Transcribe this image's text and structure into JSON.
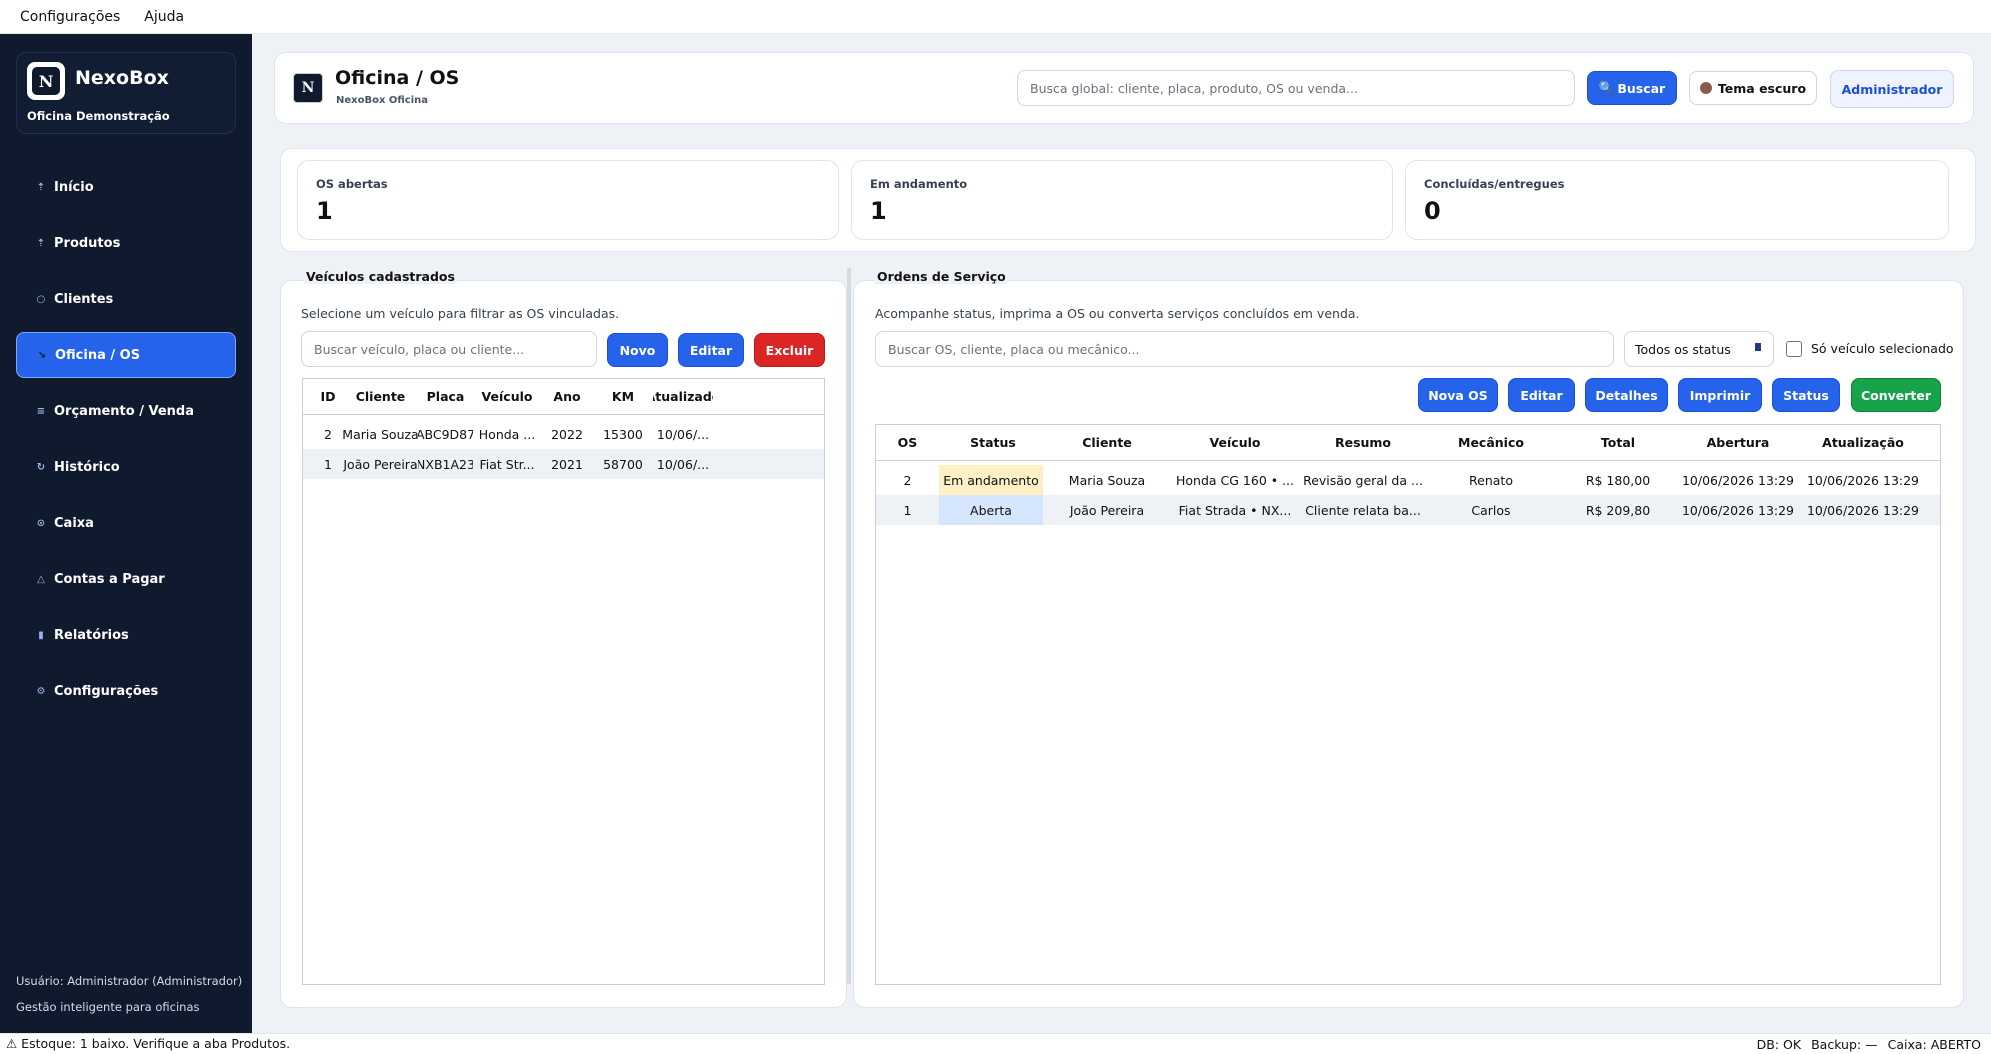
{
  "menubar": {
    "items": [
      "Configurações",
      "Ajuda"
    ]
  },
  "sidebar": {
    "brand_name": "NexoBox",
    "brand_sub": "Oficina Demonstração",
    "items": [
      {
        "label": "Início",
        "icon": "home-icon",
        "glyph": "⇡"
      },
      {
        "label": "Produtos",
        "icon": "box-icon",
        "glyph": "⇡"
      },
      {
        "label": "Clientes",
        "icon": "person-icon",
        "glyph": "○"
      },
      {
        "label": "Oficina / OS",
        "icon": "wrench-icon",
        "glyph": "↘",
        "active": true
      },
      {
        "label": "Orçamento / Venda",
        "icon": "list-icon",
        "glyph": "≡"
      },
      {
        "label": "Histórico",
        "icon": "history-icon",
        "glyph": "↻"
      },
      {
        "label": "Caixa",
        "icon": "cash-icon",
        "glyph": "⊙"
      },
      {
        "label": "Contas a Pagar",
        "icon": "alert-triangle-icon",
        "glyph": "△"
      },
      {
        "label": "Relatórios",
        "icon": "bar-chart-icon",
        "glyph": "▮"
      },
      {
        "label": "Configurações",
        "icon": "gear-icon",
        "glyph": "⚙"
      }
    ],
    "user": "Usuário: Administrador (Administrador)",
    "tagline": "Gestão inteligente para oficinas"
  },
  "header": {
    "title": "Oficina / OS",
    "subtitle": "NexoBox Oficina",
    "search_placeholder": "Busca global: cliente, placa, produto, OS ou venda...",
    "search_button": "Buscar",
    "theme_button": "Tema escuro",
    "admin_button": "Administrador"
  },
  "stats": [
    {
      "label": "OS abertas",
      "value": "1"
    },
    {
      "label": "Em andamento",
      "value": "1"
    },
    {
      "label": "Concluídas/entregues",
      "value": "0"
    }
  ],
  "vehicles": {
    "title": "Veículos cadastrados",
    "hint": "Selecione um veículo para filtrar as OS vinculadas.",
    "search_placeholder": "Buscar veículo, placa ou cliente...",
    "new_button": "Novo",
    "edit_button": "Editar",
    "delete_button": "Excluir",
    "columns": [
      "ID",
      "Cliente",
      "Placa",
      "Veículo",
      "Ano",
      "KM",
      "Atualizado"
    ],
    "rows": [
      [
        "2",
        "Maria Souza",
        "ABC9D87",
        "Honda ...",
        "2022",
        "15300",
        "10/06/..."
      ],
      [
        "1",
        "João Pereira",
        "NXB1A23",
        "Fiat Str...",
        "2021",
        "58700",
        "10/06/..."
      ]
    ]
  },
  "orders": {
    "title": "Ordens de Serviço",
    "hint": "Acompanhe status, imprima a OS ou converta serviços concluídos em venda.",
    "search_placeholder": "Buscar OS, cliente, placa ou mecânico...",
    "status_filter": "Todos os status",
    "only_selected_label": "Só veículo selecionado",
    "buttons": {
      "new": "Nova OS",
      "edit": "Editar",
      "details": "Detalhes",
      "print": "Imprimir",
      "status": "Status",
      "convert": "Converter"
    },
    "columns": [
      "OS",
      "Status",
      "Cliente",
      "Veículo",
      "Resumo",
      "Mecânico",
      "Total",
      "Abertura",
      "Atualização"
    ],
    "rows": [
      [
        "2",
        "Em andamento",
        "Maria Souza",
        "Honda CG 160 • ...",
        "Revisão geral da ...",
        "Renato",
        "R$ 180,00",
        "10/06/2026 13:29",
        "10/06/2026 13:29"
      ],
      [
        "1",
        "Aberta",
        "João Pereira",
        "Fiat Strada • NX...",
        "Cliente relata ba...",
        "Carlos",
        "R$ 209,80",
        "10/06/2026 13:29",
        "10/06/2026 13:29"
      ]
    ],
    "status_colors": {
      "Em andamento": "#fdf0c4",
      "Aberta": "#d6e6ff"
    }
  },
  "statusbar": {
    "left": "⚠ Estoque: 1 baixo. Verifique a aba Produtos.",
    "db": "DB: OK",
    "backup": "Backup: —",
    "cash": "Caixa: ABERTO"
  },
  "colors": {
    "accent": "#2563eb",
    "sidebar": "#0f1a2e",
    "danger": "#dc2626",
    "success": "#16a34a"
  }
}
